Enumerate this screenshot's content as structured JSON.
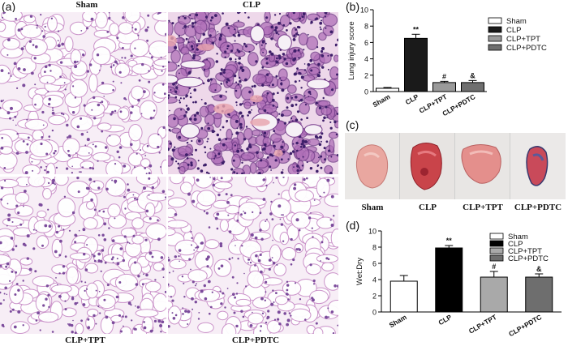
{
  "panels": {
    "a": {
      "letter": "(a)",
      "labels": {
        "sham": "Sham",
        "clp": "CLP",
        "clp_tpt": "CLP+TPT",
        "clp_pdtc": "CLP+PDTC"
      }
    },
    "b": {
      "letter": "(b)"
    },
    "c": {
      "letter": "(c)",
      "labels": [
        "Sham",
        "CLP",
        "CLP+TPT",
        "CLP+PDTC"
      ]
    },
    "d": {
      "letter": "(d)"
    }
  },
  "colors": {
    "tissue_pink": "#e6b9dc",
    "tissue_purple": "#8a4f9e",
    "clp_bar_b": "#1a1a1a",
    "tpt_bar_b": "#9a9a9a",
    "pdtc_bar_b": "#6f6f6f",
    "clp_bar_d": "#000000",
    "tpt_bar_d": "#a9a9a9",
    "pdtc_bar_d": "#6e6e6e"
  },
  "chart_data": [
    {
      "type": "bar",
      "categories": [
        "Sham",
        "CLP",
        "CLP+TPT",
        "CLP+PDTC"
      ],
      "values": [
        0.4,
        6.5,
        1.1,
        1.1
      ],
      "errors": [
        0.1,
        0.5,
        0.15,
        0.25
      ],
      "annotations": [
        "",
        "**",
        "#",
        "&"
      ],
      "legend": [
        "Sham",
        "CLP",
        "CLP+TPT",
        "CLP+PDTC"
      ],
      "legend_position": "top-right",
      "ylabel": "Lung injury score",
      "xlabel": "",
      "ylim": [
        0,
        10
      ],
      "yticks": [
        0,
        2,
        4,
        6,
        8,
        10
      ],
      "grid": false
    },
    {
      "type": "bar",
      "categories": [
        "Sham",
        "CLP",
        "CLP+TPT",
        "CLP+PDTC"
      ],
      "values": [
        3.8,
        7.9,
        4.3,
        4.3
      ],
      "errors": [
        0.7,
        0.3,
        0.7,
        0.4
      ],
      "annotations": [
        "",
        "**",
        "#",
        "&"
      ],
      "legend": [
        "Sham",
        "CLP",
        "CLP+TPT",
        "CLP+PDTC"
      ],
      "legend_position": "top-right",
      "ylabel": "Wet:Dry",
      "xlabel": "",
      "ylim": [
        0,
        10
      ],
      "yticks": [
        0,
        2,
        4,
        6,
        8,
        10
      ],
      "grid": false
    }
  ]
}
